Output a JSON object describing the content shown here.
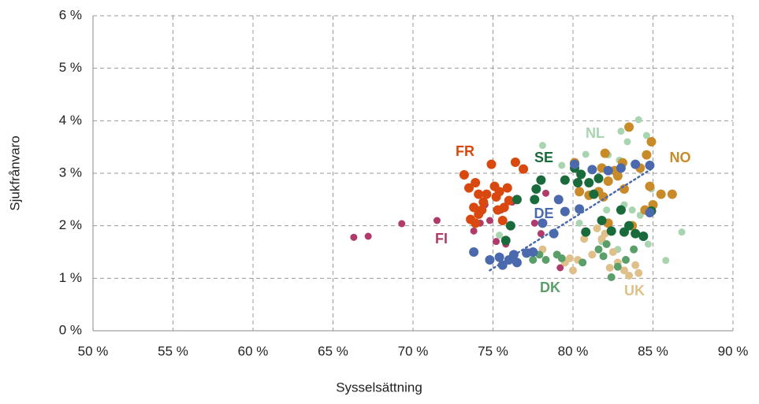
{
  "chart_data": {
    "type": "scatter",
    "xlabel": "Sysselsättning",
    "ylabel": "Sjukfrånvaro",
    "xlim": [
      50,
      90
    ],
    "ylim": [
      0,
      6
    ],
    "xticks": [
      {
        "value": 50,
        "label": "50 %"
      },
      {
        "value": 55,
        "label": "55 %"
      },
      {
        "value": 60,
        "label": "60 %"
      },
      {
        "value": 65,
        "label": "65 %"
      },
      {
        "value": 70,
        "label": "70 %"
      },
      {
        "value": 75,
        "label": "75 %"
      },
      {
        "value": 80,
        "label": "80 %"
      },
      {
        "value": 85,
        "label": "85 %"
      },
      {
        "value": 90,
        "label": "90 %"
      }
    ],
    "yticks": [
      {
        "value": 0,
        "label": "0 %"
      },
      {
        "value": 1,
        "label": "1 %"
      },
      {
        "value": 2,
        "label": "2 %"
      },
      {
        "value": 3,
        "label": "3 %"
      },
      {
        "value": 4,
        "label": "4 %"
      },
      {
        "value": 5,
        "label": "5 %"
      },
      {
        "value": 6,
        "label": "6 %"
      }
    ],
    "grid": true,
    "series": [
      {
        "name": "FI",
        "color": "#b03a6a",
        "x": [
          66.3,
          67.2,
          69.3,
          71.5,
          73.8,
          74.2,
          74.8,
          75.5,
          75.8,
          76.2,
          77.6,
          78,
          78.3,
          74.5,
          75.2,
          77.2,
          79.2
        ],
        "y": [
          1.78,
          1.8,
          2.04,
          2.1,
          1.9,
          2.05,
          2.1,
          2.3,
          1.65,
          2.45,
          2.05,
          1.85,
          2.62,
          2.4,
          1.7,
          1.5,
          1.2
        ]
      },
      {
        "name": "FR",
        "color": "#d9480f",
        "x": [
          73.2,
          74.9,
          76.4,
          76.9,
          73.5,
          73.9,
          74.1,
          73.8,
          74.4,
          73.6,
          74.1,
          75.1,
          75.4,
          75.9,
          75.2,
          75.7,
          76,
          74.6,
          75.3,
          75.6,
          73.9,
          74.3
        ],
        "y": [
          2.97,
          3.17,
          3.21,
          3.08,
          2.72,
          2.82,
          2.6,
          2.35,
          2.45,
          2.12,
          2.22,
          2.75,
          2.65,
          2.72,
          2.55,
          2.35,
          2.48,
          2.6,
          2.3,
          2.1,
          2.05,
          2.3
        ]
      },
      {
        "name": "NL",
        "color": "#a8d5b0",
        "x": [
          78.1,
          79.3,
          80.8,
          82.2,
          83,
          84.1,
          84.6,
          82.9,
          83.4,
          83.2,
          84.2,
          83.7,
          84.7,
          85.8,
          86.8,
          81.8,
          82.8,
          75.4,
          80.4,
          82.1,
          84.9
        ],
        "y": [
          3.53,
          3.15,
          3.36,
          3.35,
          3.8,
          4.02,
          3.72,
          3.25,
          3.6,
          2.4,
          2.2,
          2.3,
          1.65,
          1.34,
          1.88,
          1.7,
          1.55,
          1.82,
          2.05,
          2.3,
          2.7
        ]
      },
      {
        "name": "NO",
        "color": "#c98a2a",
        "x": [
          80.1,
          81.8,
          82,
          82.6,
          83.5,
          84.6,
          84.9,
          86.2,
          85.5,
          84.8,
          85,
          84.5,
          83.7,
          83.2,
          82.8,
          82.2,
          81.6,
          81.9,
          80.4,
          81,
          82.2,
          83.1,
          84.2
        ],
        "y": [
          3.2,
          3.1,
          3.38,
          3.05,
          3.88,
          3.35,
          3.6,
          2.6,
          2.6,
          2.75,
          2.4,
          2.3,
          2,
          2.7,
          2.95,
          2.85,
          2.65,
          2.55,
          2.65,
          2.58,
          2.05,
          3.2,
          3.1
        ]
      },
      {
        "name": "UK",
        "color": "#e0c08a",
        "x": [
          78.1,
          79.5,
          79.8,
          80,
          80.3,
          80.7,
          81.2,
          81.8,
          82,
          82.3,
          82.8,
          83.2,
          83.5,
          83.9,
          84.1,
          81.5,
          82.5
        ],
        "y": [
          1.55,
          1.3,
          1.38,
          1.15,
          1.35,
          1.75,
          1.45,
          1.75,
          1.85,
          1.2,
          1.3,
          1.15,
          1.05,
          1.25,
          1.1,
          1.95,
          1.5
        ]
      },
      {
        "name": "DK",
        "color": "#5a9e6a",
        "x": [
          77.5,
          77.9,
          78.3,
          79.3,
          81.6,
          81.9,
          82.4,
          82.8,
          83.3,
          83.8,
          82.1,
          80.6,
          79
        ],
        "y": [
          1.35,
          1.45,
          1.35,
          1.38,
          1.55,
          1.42,
          1.02,
          1.22,
          1.35,
          1.55,
          1.65,
          1.3,
          1.45
        ]
      },
      {
        "name": "SE",
        "color": "#1a6b3c",
        "x": [
          76.5,
          77.6,
          77.7,
          78,
          79.5,
          80.1,
          80.5,
          80.3,
          81,
          81.3,
          81.6,
          75.8,
          76.1,
          80.8,
          82.4,
          83.2,
          83.5,
          83.9,
          84.4,
          84.9,
          83,
          81.8
        ],
        "y": [
          2.5,
          2.5,
          2.7,
          2.87,
          2.87,
          3.1,
          2.98,
          2.82,
          2.82,
          2.6,
          2.9,
          1.72,
          2,
          1.88,
          1.9,
          1.88,
          2,
          1.85,
          1.8,
          2.28,
          2.3,
          2.1
        ]
      },
      {
        "name": "DE",
        "color": "#4a6aad",
        "x": [
          73.8,
          74.8,
          75.4,
          75.6,
          76,
          76.3,
          76.5,
          77.1,
          77.5,
          78.8,
          79.5,
          80.4,
          80.1,
          81.2,
          82.2,
          83,
          83.9,
          84.8,
          84.8,
          78.1,
          79.1
        ],
        "y": [
          1.5,
          1.35,
          1.4,
          1.25,
          1.35,
          1.45,
          1.3,
          1.48,
          1.5,
          1.85,
          2.27,
          2.32,
          3.17,
          3.07,
          3.05,
          3.1,
          3.17,
          3.15,
          2.25,
          2.05,
          2.5
        ]
      }
    ],
    "trendline": {
      "color": "#4a6aad",
      "x": [
        74.8,
        85
      ],
      "y": [
        1.15,
        3.1
      ]
    }
  }
}
